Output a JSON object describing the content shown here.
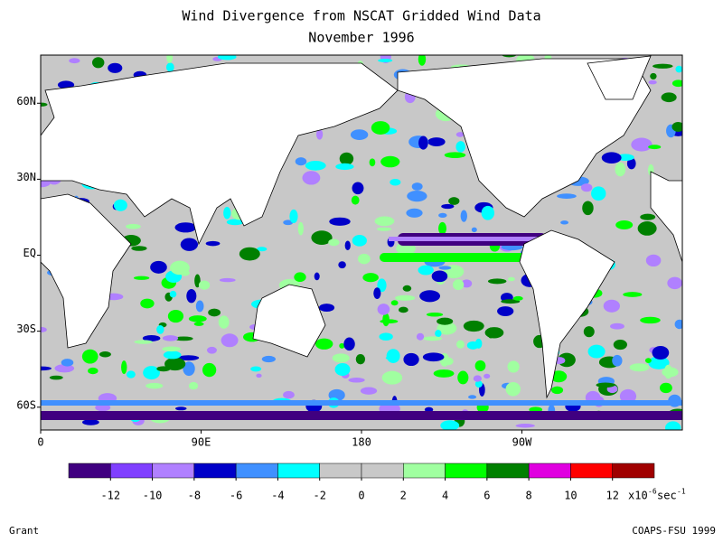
{
  "header": {
    "title": "Wind Divergence from NSCAT Gridded Wind Data",
    "subtitle": "November 1996"
  },
  "map": {
    "lonlim": [
      0,
      360
    ],
    "latlim": [
      -69,
      79
    ],
    "lat_labels": [
      {
        "value": 60,
        "label": "60N"
      },
      {
        "value": 30,
        "label": "30N"
      },
      {
        "value": 0,
        "label": "EQ"
      },
      {
        "value": -30,
        "label": "30S"
      },
      {
        "value": -60,
        "label": "60S"
      }
    ],
    "lon_labels": [
      {
        "value": 0,
        "label": "0"
      },
      {
        "value": 90,
        "label": "90E"
      },
      {
        "value": 180,
        "label": "180"
      },
      {
        "value": 270,
        "label": "90W"
      }
    ]
  },
  "colorbar": {
    "range": [
      -14,
      14
    ],
    "colors": [
      "#400080",
      "#8040ff",
      "#b080ff",
      "#0000c8",
      "#4090ff",
      "#00ffff",
      "#c8c8c8",
      "#c8c8c8",
      "#a0ffa0",
      "#00ff00",
      "#008000",
      "#e000e0",
      "#ff0000",
      "#a00000"
    ],
    "ticks": [
      -12,
      -10,
      -8,
      -6,
      -4,
      -2,
      0,
      2,
      4,
      6,
      8,
      10,
      12
    ],
    "units": {
      "base": "x10",
      "exp": "-6",
      "unit": "sec",
      "unit_exp": "-1"
    }
  },
  "footer": {
    "left": "Grant",
    "right": "COAPS-FSU 1999"
  }
}
